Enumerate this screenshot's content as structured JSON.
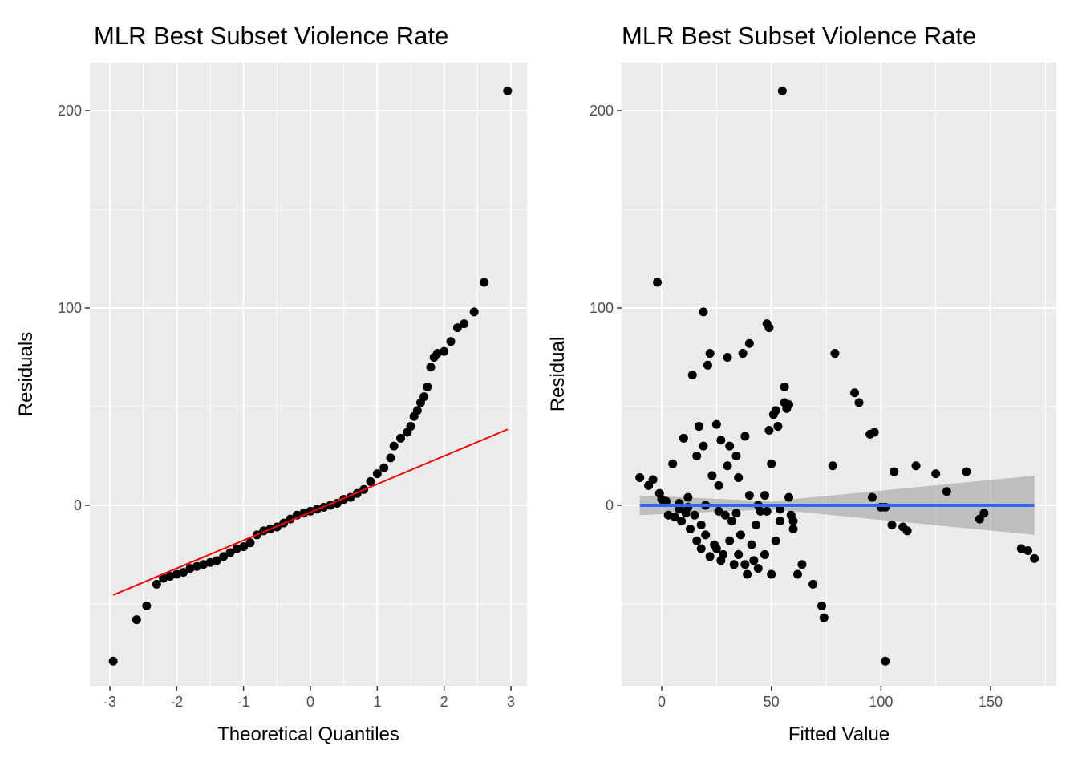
{
  "chart_data": [
    {
      "type": "scatter",
      "title": "MLR Best Subset Violence Rate",
      "x_label": "Theoretical Quantiles",
      "y_label": "Residuals",
      "xlim": [
        -3.3,
        3.24
      ],
      "ylim": [
        -91.5,
        224.4
      ],
      "xticks": [
        -3,
        -2,
        -1,
        0,
        1,
        2,
        3
      ],
      "yticks": [
        0,
        100,
        200
      ],
      "xminorticks": [
        -2.5,
        -1.5,
        -0.5,
        0.5,
        1.5,
        2.5
      ],
      "yminorticks": [
        -50,
        50,
        150
      ],
      "grid": true,
      "color": "#000000",
      "x": [
        -2.95,
        -2.6,
        -2.45,
        -2.3,
        -2.2,
        -2.1,
        -2.0,
        -1.9,
        -1.8,
        -1.7,
        -1.6,
        -1.5,
        -1.4,
        -1.3,
        -1.2,
        -1.1,
        -1.0,
        -0.9,
        -0.8,
        -0.7,
        -0.6,
        -0.5,
        -0.4,
        -0.3,
        -0.2,
        -0.1,
        0,
        0.1,
        0.2,
        0.3,
        0.4,
        0.5,
        0.6,
        0.7,
        0.8,
        0.9,
        1.0,
        1.1,
        1.2,
        1.25,
        1.35,
        1.45,
        1.5,
        1.55,
        1.6,
        1.65,
        1.7,
        1.75,
        1.8,
        1.85,
        1.9,
        2.0,
        2.1,
        2.2,
        2.3,
        2.45,
        2.6,
        2.95
      ],
      "values": [
        -79,
        -58,
        -51,
        -40,
        -37,
        -36,
        -35,
        -34,
        -32,
        -31,
        -30,
        -29,
        -28,
        -26,
        -24,
        -22,
        -21,
        -19,
        -15,
        -13,
        -12,
        -11,
        -9,
        -7,
        -5,
        -4,
        -3,
        -2,
        -1,
        0,
        1,
        3,
        4,
        6,
        8,
        12,
        16,
        19,
        24,
        30,
        34,
        37,
        40,
        45,
        48,
        52,
        55,
        60,
        70,
        75,
        77,
        78,
        83,
        90,
        92,
        98,
        113,
        210
      ],
      "reference_line": {
        "x": [
          -2.95,
          2.95
        ],
        "y": [
          -45.5,
          38.5
        ],
        "color": "#ff0000"
      }
    },
    {
      "type": "scatter",
      "title": "MLR Best Subset Violence Rate",
      "x_label": "Fitted Value",
      "y_label": "Residual",
      "xlim": [
        -18.3,
        180
      ],
      "ylim": [
        -91.5,
        224.4
      ],
      "xticks": [
        0,
        50,
        100,
        150
      ],
      "yticks": [
        0,
        100,
        200
      ],
      "xminorticks": [
        25,
        75,
        125,
        175
      ],
      "yminorticks": [
        -50,
        50,
        150
      ],
      "grid": true,
      "color": "#000000",
      "x": [
        -10,
        -6,
        -4,
        -2,
        -1,
        0,
        2,
        5,
        8,
        10,
        12,
        14,
        15,
        16,
        17,
        18,
        19,
        19,
        20,
        21,
        22,
        23,
        24,
        25,
        26,
        27,
        28,
        29,
        30,
        30,
        31,
        32,
        33,
        34,
        35,
        36,
        37,
        38,
        39,
        40,
        40,
        41,
        42,
        43,
        45,
        47,
        48,
        49,
        49,
        50,
        50,
        51,
        52,
        53,
        54,
        55,
        56,
        56,
        57,
        58,
        58,
        59,
        60,
        60,
        62,
        64,
        69,
        73,
        74,
        78,
        79,
        88,
        90,
        95,
        97,
        96,
        100,
        102,
        102,
        105,
        106,
        110,
        112,
        116,
        125,
        130,
        139,
        145,
        147,
        164,
        167,
        170,
        3,
        6,
        9,
        11,
        13,
        16,
        18,
        22,
        25,
        27,
        31,
        35,
        38,
        44,
        47,
        52,
        8,
        12,
        20,
        26,
        34,
        44,
        48,
        54
      ],
      "values": [
        14,
        10,
        13,
        113,
        6,
        3,
        2,
        21,
        -2,
        34,
        4,
        66,
        -5,
        25,
        40,
        -10,
        98,
        30,
        -15,
        71,
        77,
        15,
        -20,
        41,
        10,
        33,
        -25,
        -5,
        75,
        20,
        30,
        -8,
        -30,
        25,
        14,
        -15,
        77,
        35,
        -35,
        82,
        5,
        -20,
        -28,
        -10,
        -3,
        5,
        92,
        90,
        38,
        -35,
        21,
        46,
        48,
        40,
        -8,
        210,
        52,
        60,
        49,
        51,
        4,
        -5,
        -12,
        -8,
        -35,
        -30,
        -40,
        -51,
        -57,
        20,
        77,
        57,
        52,
        36,
        37,
        4,
        -1,
        -1,
        -79,
        -10,
        17,
        -11,
        -13,
        20,
        16,
        7,
        17,
        -7,
        -4,
        -22,
        -23,
        -27,
        -5,
        -6,
        -8,
        -4,
        -12,
        -18,
        -22,
        -26,
        -22,
        -28,
        -18,
        -25,
        -30,
        -32,
        -25,
        -18,
        1,
        -1,
        0,
        -3,
        -4,
        0,
        -3,
        -2
      ],
      "smooth": {
        "x": [
          -10,
          50,
          170
        ],
        "y": [
          0,
          0,
          0
        ],
        "lower": [
          -5,
          -2,
          -15
        ],
        "upper": [
          5,
          2,
          15
        ],
        "color": "#3366ff",
        "band_color": "#999999"
      }
    }
  ]
}
